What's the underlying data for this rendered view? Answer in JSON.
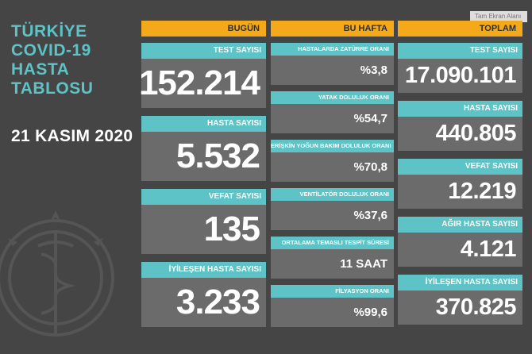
{
  "title_lines": [
    "TÜRKİYE",
    "COVID-19",
    "HASTA",
    "TABLOSU"
  ],
  "date": "21 KASIM 2020",
  "watermark": "Tam Ekran Alanı",
  "headers": {
    "today": "BUGÜN",
    "week": "BU HAFTA",
    "total": "TOPLAM"
  },
  "today": [
    {
      "label": "TEST SAYISI",
      "value": "152.214"
    },
    {
      "label": "HASTA SAYISI",
      "value": "5.532"
    },
    {
      "label": "VEFAT SAYISI",
      "value": "135"
    },
    {
      "label": "İYİLEŞEN HASTA SAYISI",
      "value": "3.233"
    }
  ],
  "week": [
    {
      "label": "HASTALARDA ZATÜRRE ORANI",
      "value": "%3,8"
    },
    {
      "label": "YATAK DOLULUK ORANI",
      "value": "%54,7"
    },
    {
      "label": "ERİŞKİN YOĞUN BAKIM DOLULUK ORANI",
      "value": "%70,8"
    },
    {
      "label": "VENTİLATÖR DOLULUK ORANI",
      "value": "%37,6"
    },
    {
      "label": "ORTALAMA TEMASLI TESPİT SÜRESİ",
      "value": "11 SAAT"
    },
    {
      "label": "FİLYASYON ORANI",
      "value": "%99,6"
    }
  ],
  "total": [
    {
      "label": "TEST SAYISI",
      "value": "17.090.101"
    },
    {
      "label": "HASTA SAYISI",
      "value": "440.805"
    },
    {
      "label": "VEFAT SAYISI",
      "value": "12.219"
    },
    {
      "label": "AĞIR HASTA SAYISI",
      "value": "4.121"
    },
    {
      "label": "İYİLEŞEN HASTA SAYISI",
      "value": "370.825"
    }
  ],
  "colors": {
    "background": "#454545",
    "accent": "#5ec3c6",
    "header": "#f4a91b",
    "card": "#6b6b6b"
  }
}
